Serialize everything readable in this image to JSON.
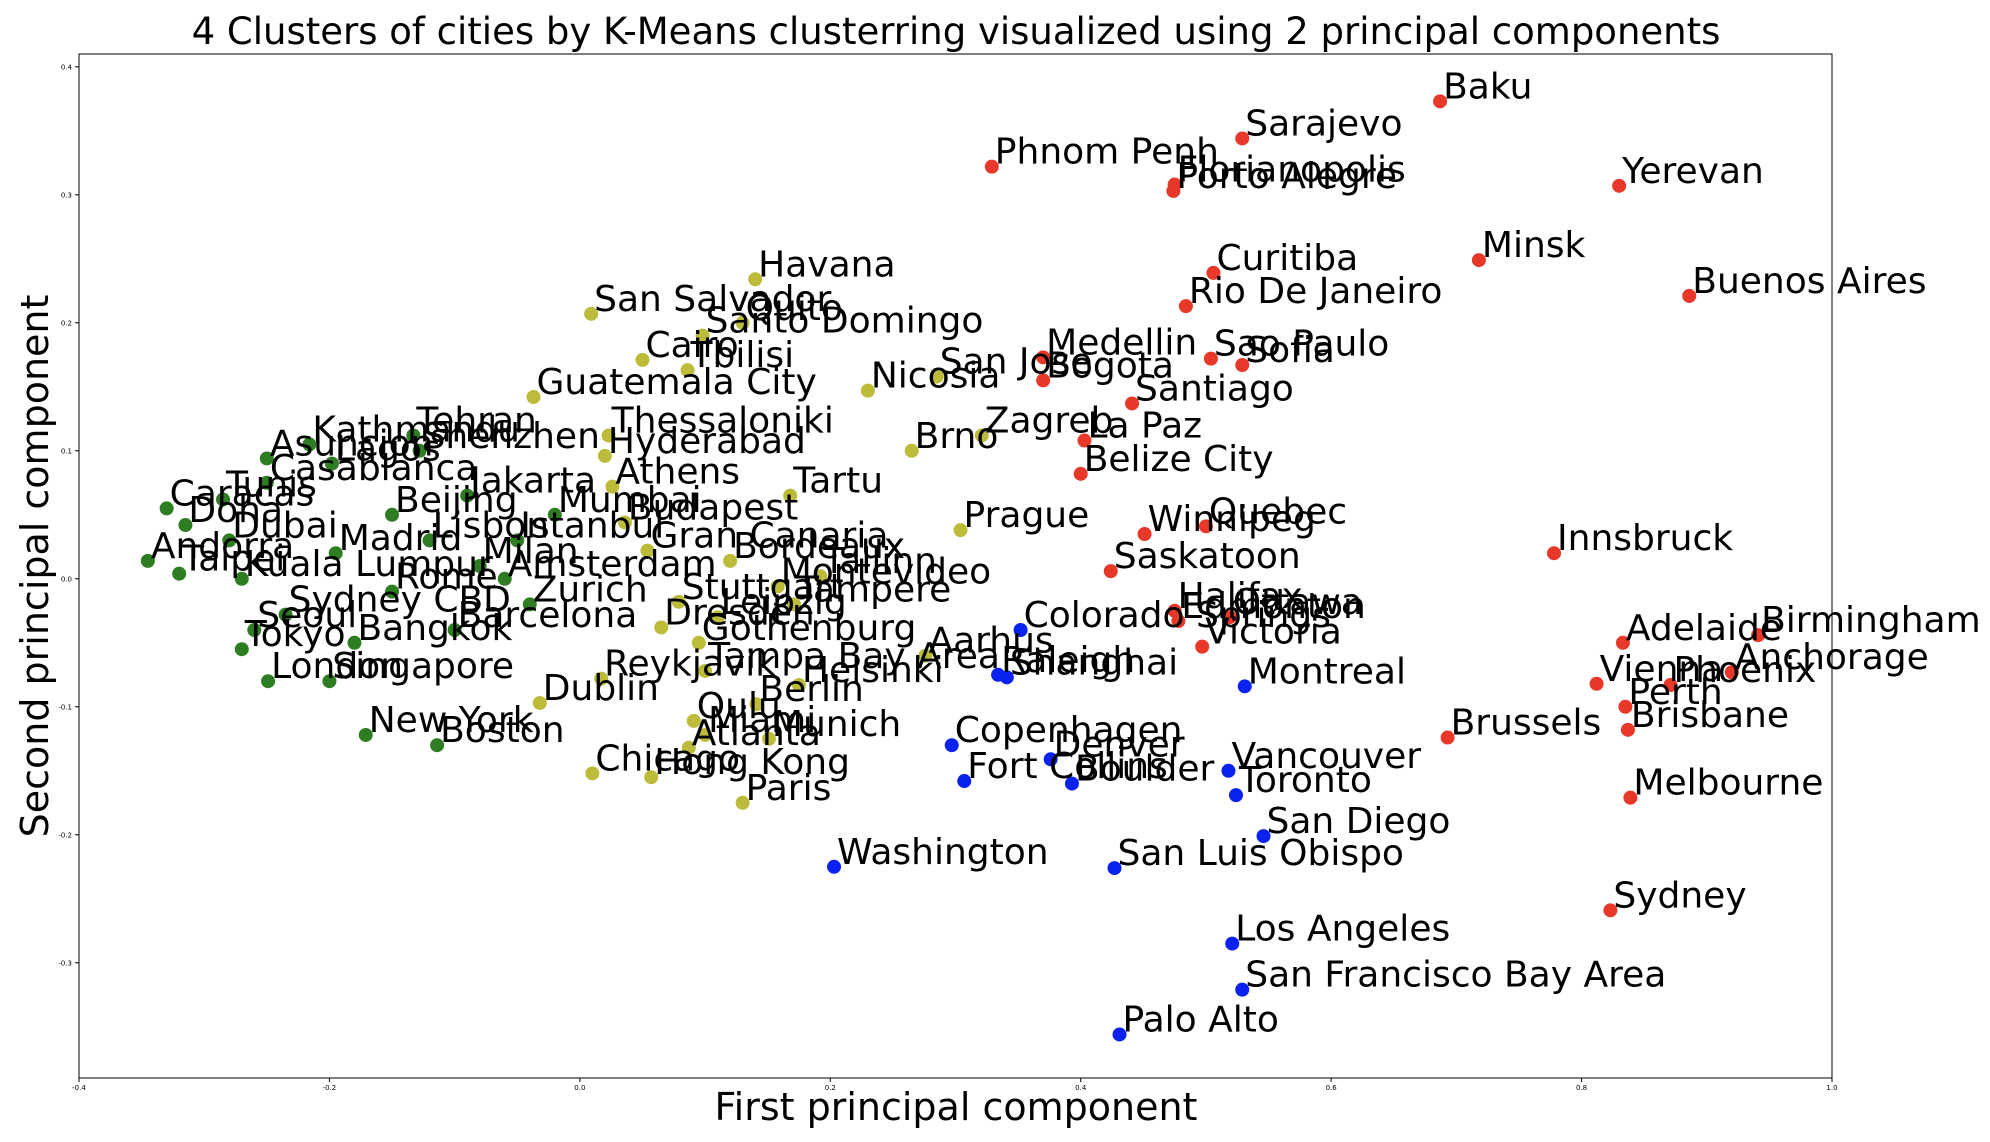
{
  "chart_data": {
    "type": "scatter",
    "title": "4 Clusters of cities by K-Means clusterring visualized using 2 principal components",
    "xlabel": "First principal component",
    "ylabel": "Second principal component",
    "xlim": [
      -0.4,
      1.0
    ],
    "ylim": [
      -0.39,
      0.41
    ],
    "xticks": [
      -0.4,
      -0.2,
      0.0,
      0.2,
      0.4,
      0.6,
      0.8,
      1.0
    ],
    "yticks": [
      -0.3,
      -0.2,
      -0.1,
      0.0,
      0.1,
      0.2,
      0.3,
      0.4
    ],
    "xtick_labels": [
      "-0.4",
      "-0.2",
      "0.0",
      "0.2",
      "0.4",
      "0.6",
      "0.8",
      "1.0"
    ],
    "ytick_labels": [
      "-0.3",
      "-0.2",
      "-0.1",
      "0.0",
      "0.1",
      "0.2",
      "0.3",
      "0.4"
    ],
    "grid": false,
    "colors": {
      "red": "#e8382a",
      "blue": "#0a22f0",
      "yellow": "#bcbb3a",
      "green": "#2e7d22"
    },
    "points": [
      {
        "label": "Baku",
        "x": 0.687,
        "y": 0.373,
        "c": "red"
      },
      {
        "label": "Sarajevo",
        "x": 0.529,
        "y": 0.344,
        "c": "red"
      },
      {
        "label": "Phnom Penh",
        "x": 0.329,
        "y": 0.322,
        "c": "red"
      },
      {
        "label": "Florianopolis",
        "x": 0.475,
        "y": 0.308,
        "c": "red"
      },
      {
        "label": "Porto Alegre",
        "x": 0.474,
        "y": 0.303,
        "c": "red"
      },
      {
        "label": "Yerevan",
        "x": 0.83,
        "y": 0.307,
        "c": "red"
      },
      {
        "label": "Curitiba",
        "x": 0.506,
        "y": 0.239,
        "c": "red"
      },
      {
        "label": "Minsk",
        "x": 0.718,
        "y": 0.249,
        "c": "red"
      },
      {
        "label": "Buenos Aires",
        "x": 0.886,
        "y": 0.221,
        "c": "red"
      },
      {
        "label": "Rio De Janeiro",
        "x": 0.484,
        "y": 0.213,
        "c": "red"
      },
      {
        "label": "Medellin",
        "x": 0.37,
        "y": 0.173,
        "c": "red"
      },
      {
        "label": "Sao Paulo",
        "x": 0.504,
        "y": 0.172,
        "c": "red"
      },
      {
        "label": "Bogota",
        "x": 0.37,
        "y": 0.155,
        "c": "red"
      },
      {
        "label": "Sofia",
        "x": 0.529,
        "y": 0.167,
        "c": "red"
      },
      {
        "label": "Santiago",
        "x": 0.441,
        "y": 0.137,
        "c": "red"
      },
      {
        "label": "La Paz",
        "x": 0.403,
        "y": 0.108,
        "c": "red"
      },
      {
        "label": "Belize City",
        "x": 0.4,
        "y": 0.082,
        "c": "red"
      },
      {
        "label": "Quebec",
        "x": 0.5,
        "y": 0.041,
        "c": "red"
      },
      {
        "label": "Winnipeg",
        "x": 0.451,
        "y": 0.035,
        "c": "red"
      },
      {
        "label": "Innsbruck",
        "x": 0.778,
        "y": 0.02,
        "c": "red"
      },
      {
        "label": "Saskatoon",
        "x": 0.424,
        "y": 0.006,
        "c": "red"
      },
      {
        "label": "Halifax",
        "x": 0.475,
        "y": -0.025,
        "c": "red"
      },
      {
        "label": "Edmonton",
        "x": 0.478,
        "y": -0.033,
        "c": "red"
      },
      {
        "label": "Ottawa",
        "x": 0.519,
        "y": -0.03,
        "c": "red"
      },
      {
        "label": "Victoria",
        "x": 0.497,
        "y": -0.053,
        "c": "red"
      },
      {
        "label": "Adelaide",
        "x": 0.833,
        "y": -0.05,
        "c": "red"
      },
      {
        "label": "Birmingham",
        "x": 0.941,
        "y": -0.044,
        "c": "red"
      },
      {
        "label": "Anchorage",
        "x": 0.92,
        "y": -0.073,
        "c": "red"
      },
      {
        "label": "Vienna",
        "x": 0.812,
        "y": -0.082,
        "c": "red"
      },
      {
        "label": "Phoenix",
        "x": 0.871,
        "y": -0.083,
        "c": "red"
      },
      {
        "label": "Perth",
        "x": 0.835,
        "y": -0.1,
        "c": "red"
      },
      {
        "label": "Brisbane",
        "x": 0.837,
        "y": -0.118,
        "c": "red"
      },
      {
        "label": "Brussels",
        "x": 0.693,
        "y": -0.124,
        "c": "red"
      },
      {
        "label": "Melbourne",
        "x": 0.839,
        "y": -0.171,
        "c": "red"
      },
      {
        "label": "Sydney",
        "x": 0.823,
        "y": -0.259,
        "c": "red"
      },
      {
        "label": "Colorado Springs",
        "x": 0.352,
        "y": -0.04,
        "c": "blue"
      },
      {
        "label": "Raleigh",
        "x": 0.334,
        "y": -0.075,
        "c": "blue"
      },
      {
        "label": "Shanghai",
        "x": 0.341,
        "y": -0.077,
        "c": "blue"
      },
      {
        "label": "Montreal",
        "x": 0.531,
        "y": -0.084,
        "c": "blue"
      },
      {
        "label": "Copenhagen",
        "x": 0.297,
        "y": -0.13,
        "c": "blue"
      },
      {
        "label": "Denver",
        "x": 0.376,
        "y": -0.141,
        "c": "blue"
      },
      {
        "label": "Vancouver",
        "x": 0.518,
        "y": -0.15,
        "c": "blue"
      },
      {
        "label": "Fort Collins",
        "x": 0.307,
        "y": -0.158,
        "c": "blue"
      },
      {
        "label": "Boulder",
        "x": 0.393,
        "y": -0.16,
        "c": "blue"
      },
      {
        "label": "Toronto",
        "x": 0.524,
        "y": -0.169,
        "c": "blue"
      },
      {
        "label": "San Diego",
        "x": 0.546,
        "y": -0.201,
        "c": "blue"
      },
      {
        "label": "Washington",
        "x": 0.203,
        "y": -0.225,
        "c": "blue"
      },
      {
        "label": "San Luis Obispo",
        "x": 0.427,
        "y": -0.226,
        "c": "blue"
      },
      {
        "label": "Los Angeles",
        "x": 0.521,
        "y": -0.285,
        "c": "blue"
      },
      {
        "label": "San Francisco Bay Area",
        "x": 0.529,
        "y": -0.321,
        "c": "blue"
      },
      {
        "label": "Palo Alto",
        "x": 0.431,
        "y": -0.356,
        "c": "blue"
      },
      {
        "label": "Havana",
        "x": 0.14,
        "y": 0.234,
        "c": "yellow"
      },
      {
        "label": "San Salvador",
        "x": 0.009,
        "y": 0.207,
        "c": "yellow"
      },
      {
        "label": "Quito",
        "x": 0.13,
        "y": 0.2,
        "c": "yellow"
      },
      {
        "label": "Santo Domingo",
        "x": 0.098,
        "y": 0.19,
        "c": "yellow"
      },
      {
        "label": "Cairo",
        "x": 0.05,
        "y": 0.171,
        "c": "yellow"
      },
      {
        "label": "Tbilisi",
        "x": 0.086,
        "y": 0.163,
        "c": "yellow"
      },
      {
        "label": "San Jose",
        "x": 0.285,
        "y": 0.158,
        "c": "yellow"
      },
      {
        "label": "Nicosia",
        "x": 0.23,
        "y": 0.147,
        "c": "yellow"
      },
      {
        "label": "Guatemala City",
        "x": -0.037,
        "y": 0.142,
        "c": "yellow"
      },
      {
        "label": "Zagreb",
        "x": 0.321,
        "y": 0.112,
        "c": "yellow"
      },
      {
        "label": "Thessaloniki",
        "x": 0.023,
        "y": 0.112,
        "c": "yellow"
      },
      {
        "label": "Brno",
        "x": 0.265,
        "y": 0.1,
        "c": "yellow"
      },
      {
        "label": "Hyderabad",
        "x": 0.02,
        "y": 0.096,
        "c": "yellow"
      },
      {
        "label": "Athens",
        "x": 0.026,
        "y": 0.072,
        "c": "yellow"
      },
      {
        "label": "Tartu",
        "x": 0.168,
        "y": 0.065,
        "c": "yellow"
      },
      {
        "label": "Budapest",
        "x": 0.036,
        "y": 0.044,
        "c": "yellow"
      },
      {
        "label": "Prague",
        "x": 0.304,
        "y": 0.038,
        "c": "yellow"
      },
      {
        "label": "Gran Canaria",
        "x": 0.054,
        "y": 0.022,
        "c": "yellow"
      },
      {
        "label": "Tallinn",
        "x": 0.192,
        "y": 0.002,
        "c": "yellow"
      },
      {
        "label": "Bordeaux",
        "x": 0.12,
        "y": 0.014,
        "c": "yellow"
      },
      {
        "label": "Montevideo",
        "x": 0.158,
        "y": -0.006,
        "c": "yellow"
      },
      {
        "label": "Tampere",
        "x": 0.171,
        "y": -0.02,
        "c": "yellow"
      },
      {
        "label": "Stuttgart",
        "x": 0.079,
        "y": -0.018,
        "c": "yellow"
      },
      {
        "label": "Leipzig",
        "x": 0.11,
        "y": -0.03,
        "c": "yellow"
      },
      {
        "label": "Dresden",
        "x": 0.065,
        "y": -0.038,
        "c": "yellow"
      },
      {
        "label": "Gothenburg",
        "x": 0.095,
        "y": -0.05,
        "c": "yellow"
      },
      {
        "label": "Aarhus",
        "x": 0.276,
        "y": -0.06,
        "c": "yellow"
      },
      {
        "label": "Tampa Bay Area",
        "x": 0.1,
        "y": -0.072,
        "c": "yellow"
      },
      {
        "label": "Helsinki",
        "x": 0.175,
        "y": -0.083,
        "c": "yellow"
      },
      {
        "label": "Reykjavik",
        "x": 0.017,
        "y": -0.078,
        "c": "yellow"
      },
      {
        "label": "Dublin",
        "x": -0.032,
        "y": -0.097,
        "c": "yellow"
      },
      {
        "label": "Berlin",
        "x": 0.141,
        "y": -0.098,
        "c": "yellow"
      },
      {
        "label": "Oulu",
        "x": 0.091,
        "y": -0.111,
        "c": "yellow"
      },
      {
        "label": "Miami",
        "x": 0.1,
        "y": -0.122,
        "c": "yellow"
      },
      {
        "label": "Munich",
        "x": 0.151,
        "y": -0.125,
        "c": "yellow"
      },
      {
        "label": "Atlanta",
        "x": 0.087,
        "y": -0.132,
        "c": "yellow"
      },
      {
        "label": "Chicago",
        "x": 0.01,
        "y": -0.152,
        "c": "yellow"
      },
      {
        "label": "Hong Kong",
        "x": 0.057,
        "y": -0.155,
        "c": "yellow"
      },
      {
        "label": "Paris",
        "x": 0.13,
        "y": -0.175,
        "c": "yellow"
      },
      {
        "label": "New York",
        "x": -0.171,
        "y": -0.122,
        "c": "green"
      },
      {
        "label": "Boston",
        "x": -0.114,
        "y": -0.13,
        "c": "green"
      },
      {
        "label": "Singapore",
        "x": -0.2,
        "y": -0.08,
        "c": "green"
      },
      {
        "label": "London",
        "x": -0.249,
        "y": -0.08,
        "c": "green"
      },
      {
        "label": "Kathmandu",
        "x": -0.216,
        "y": 0.105,
        "c": "green"
      },
      {
        "label": "Tehran",
        "x": -0.133,
        "y": 0.112,
        "c": "green"
      },
      {
        "label": "Shenzhen",
        "x": -0.128,
        "y": 0.1,
        "c": "green"
      },
      {
        "label": "Asuncion",
        "x": -0.25,
        "y": 0.094,
        "c": "green"
      },
      {
        "label": "Lagos",
        "x": -0.198,
        "y": 0.09,
        "c": "green"
      },
      {
        "label": "Jakarta",
        "x": -0.09,
        "y": 0.065,
        "c": "green"
      },
      {
        "label": "Casablanca",
        "x": -0.25,
        "y": 0.075,
        "c": "green"
      },
      {
        "label": "Caracas",
        "x": -0.33,
        "y": 0.055,
        "c": "green"
      },
      {
        "label": "Tunis",
        "x": -0.285,
        "y": 0.062,
        "c": "green"
      },
      {
        "label": "Mumbai",
        "x": -0.02,
        "y": 0.05,
        "c": "green"
      },
      {
        "label": "Doha",
        "x": -0.315,
        "y": 0.042,
        "c": "green"
      },
      {
        "label": "Dubai",
        "x": -0.28,
        "y": 0.03,
        "c": "green"
      },
      {
        "label": "Andorra",
        "x": -0.345,
        "y": 0.014,
        "c": "green"
      },
      {
        "label": "Taipei",
        "x": -0.32,
        "y": 0.004,
        "c": "green"
      },
      {
        "label": "Kuala Lumpur",
        "x": -0.27,
        "y": 0.0,
        "c": "green"
      },
      {
        "label": "Seoul",
        "x": -0.26,
        "y": -0.04,
        "c": "green"
      },
      {
        "label": "Tokyo",
        "x": -0.27,
        "y": -0.055,
        "c": "green"
      },
      {
        "label": "Sydney CBD",
        "x": -0.235,
        "y": -0.028,
        "c": "green"
      },
      {
        "label": "Madrid",
        "x": -0.195,
        "y": 0.02,
        "c": "green"
      },
      {
        "label": "Rome",
        "x": -0.15,
        "y": -0.01,
        "c": "green"
      },
      {
        "label": "Lisbon",
        "x": -0.12,
        "y": 0.03,
        "c": "green"
      },
      {
        "label": "Barcelona",
        "x": -0.1,
        "y": -0.04,
        "c": "green"
      },
      {
        "label": "Amsterdam",
        "x": -0.06,
        "y": 0.0,
        "c": "green"
      },
      {
        "label": "Zurich",
        "x": -0.04,
        "y": -0.02,
        "c": "green"
      },
      {
        "label": "Milan",
        "x": -0.08,
        "y": 0.01,
        "c": "green"
      },
      {
        "label": "Istanbul",
        "x": -0.05,
        "y": 0.03,
        "c": "green"
      },
      {
        "label": "Beijing",
        "x": -0.15,
        "y": 0.05,
        "c": "green"
      },
      {
        "label": "Bangkok",
        "x": -0.18,
        "y": -0.05,
        "c": "green"
      }
    ]
  }
}
